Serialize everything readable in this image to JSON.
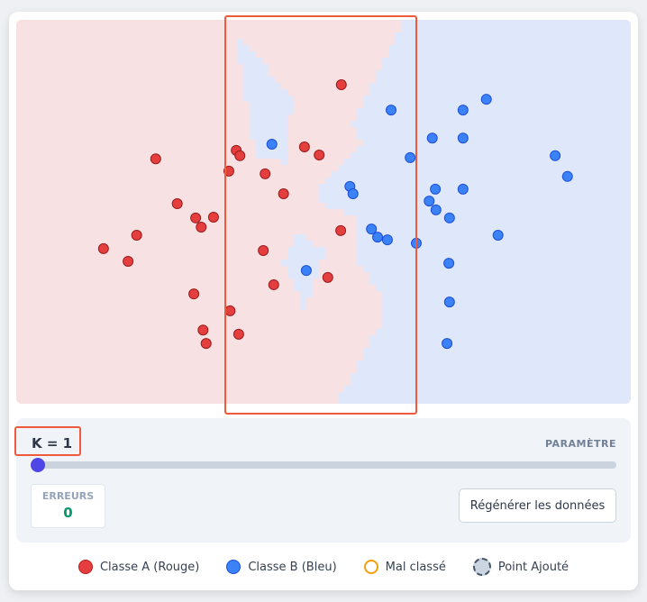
{
  "controls": {
    "k_label": "K = 1",
    "k_value": 1,
    "k_min": 1,
    "param_label": "PARAMÈTRE",
    "errors_label": "ERREURS",
    "errors_value": "0",
    "regen_button": "Régénérer les données"
  },
  "legend": [
    {
      "label": "Classe A (Rouge)",
      "icon": "red-dot"
    },
    {
      "label": "Classe B (Bleu)",
      "icon": "blue-dot"
    },
    {
      "label": "Mal classé",
      "icon": "orange-ring"
    },
    {
      "label": "Point Ajouté",
      "icon": "dashed-gray-dot"
    }
  ],
  "colors": {
    "red": "#e53e3e",
    "blue": "#3b82f6",
    "region_red": "#f7e1e2",
    "region_blue": "#dfe7fb",
    "accent": "#4f46e5",
    "errors": "#059669",
    "highlight": "#ef5a3c"
  },
  "chart_data": {
    "type": "scatter",
    "xlim": [
      0,
      100
    ],
    "ylim": [
      0,
      100
    ],
    "grid": false,
    "series": [
      {
        "name": "Classe A (Rouge)",
        "points": [
          [
            52.9,
            16.9
          ],
          [
            35.8,
            34.0
          ],
          [
            36.4,
            35.4
          ],
          [
            46.9,
            33.1
          ],
          [
            49.3,
            35.2
          ],
          [
            22.7,
            36.2
          ],
          [
            34.6,
            39.4
          ],
          [
            40.5,
            40.1
          ],
          [
            43.5,
            45.3
          ],
          [
            26.2,
            47.9
          ],
          [
            29.2,
            51.6
          ],
          [
            32.1,
            51.4
          ],
          [
            30.1,
            54.0
          ],
          [
            19.6,
            56.1
          ],
          [
            14.2,
            59.6
          ],
          [
            18.2,
            62.9
          ],
          [
            40.2,
            60.1
          ],
          [
            52.8,
            54.9
          ],
          [
            50.7,
            67.1
          ],
          [
            41.9,
            69.0
          ],
          [
            28.9,
            71.4
          ],
          [
            34.8,
            75.8
          ],
          [
            30.4,
            80.8
          ],
          [
            36.2,
            81.9
          ],
          [
            30.9,
            84.3
          ]
        ]
      },
      {
        "name": "Classe B (Bleu)",
        "points": [
          [
            41.6,
            32.4
          ],
          [
            61.0,
            23.5
          ],
          [
            72.7,
            23.5
          ],
          [
            76.5,
            20.7
          ],
          [
            67.7,
            30.8
          ],
          [
            72.7,
            30.8
          ],
          [
            64.1,
            35.9
          ],
          [
            87.7,
            35.4
          ],
          [
            89.7,
            40.8
          ],
          [
            54.3,
            43.4
          ],
          [
            54.8,
            45.3
          ],
          [
            68.2,
            44.1
          ],
          [
            72.7,
            44.1
          ],
          [
            67.2,
            47.2
          ],
          [
            68.3,
            49.5
          ],
          [
            70.5,
            51.6
          ],
          [
            57.8,
            54.5
          ],
          [
            58.8,
            56.6
          ],
          [
            60.4,
            57.3
          ],
          [
            65.1,
            58.2
          ],
          [
            78.4,
            56.1
          ],
          [
            70.4,
            63.4
          ],
          [
            47.2,
            65.3
          ],
          [
            70.5,
            73.5
          ],
          [
            70.1,
            84.3
          ]
        ]
      }
    ]
  }
}
